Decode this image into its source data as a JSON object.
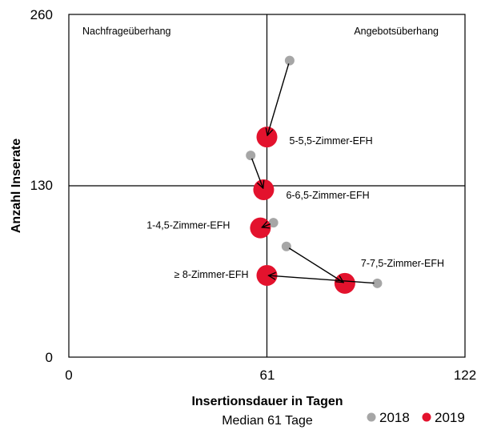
{
  "chart_data": {
    "type": "scatter",
    "xlabel": "Insertionsdauer in Tagen",
    "xlabel_sub": "Median 61 Tage",
    "ylabel": "Anzahl Inserate",
    "xlim": [
      0,
      122
    ],
    "ylim": [
      0,
      260
    ],
    "x_ticks": [
      "0",
      "61",
      "122"
    ],
    "y_ticks": [
      "0",
      "130",
      "260"
    ],
    "reference_lines": {
      "x": 61,
      "y": 130
    },
    "quadrant_labels": {
      "top_left": "Nachfrageüberhang",
      "top_right": "Angebotsüberhang"
    },
    "series": [
      {
        "name": "2018",
        "color": "#a6a6a6"
      },
      {
        "name": "2019",
        "color": "#e3122d"
      }
    ],
    "points": [
      {
        "label": "5-5,5-Zimmer-EFH",
        "x2018": 68,
        "y2018": 225,
        "x2019": 61,
        "y2019": 167
      },
      {
        "label": "6-6,5-Zimmer-EFH",
        "x2018": 56,
        "y2018": 153,
        "x2019": 60,
        "y2019": 127
      },
      {
        "label": "1-4,5-Zimmer-EFH",
        "x2018": 63,
        "y2018": 102,
        "x2019": 59,
        "y2019": 98
      },
      {
        "label": "7-7,5-Zimmer-EFH",
        "x2018": 67,
        "y2018": 84,
        "x2019": 85,
        "y2019": 56
      },
      {
        "label": "≥ 8-Zimmer-EFH",
        "x2018": 95,
        "y2018": 56,
        "x2019": 61,
        "y2019": 62
      }
    ]
  }
}
